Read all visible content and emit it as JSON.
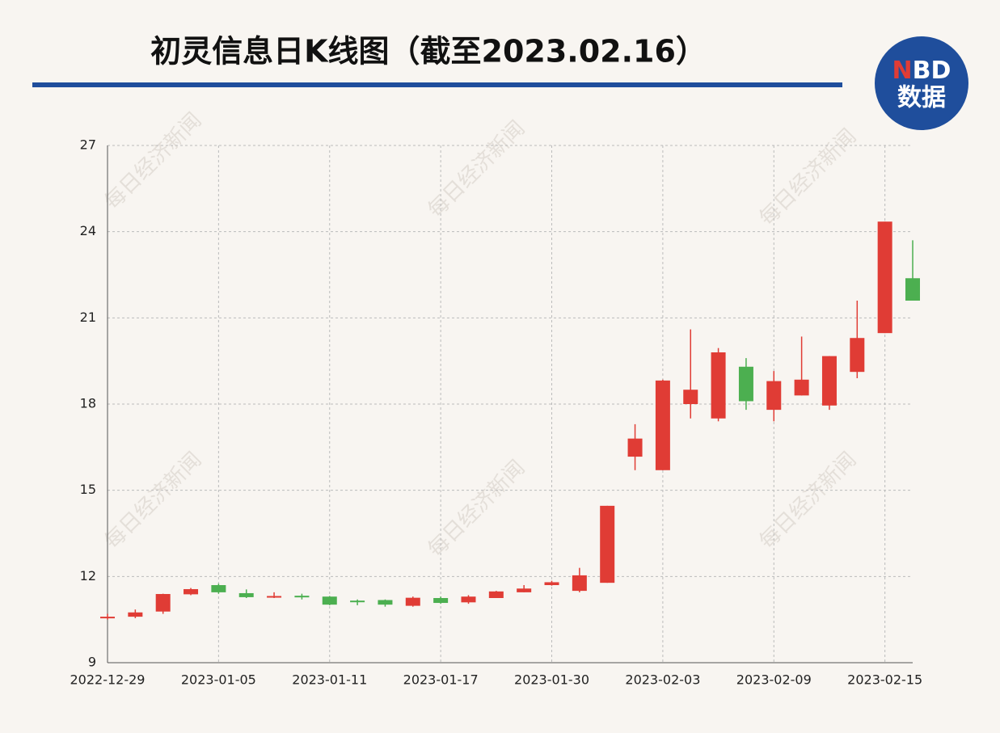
{
  "chart_data": {
    "type": "candlestick",
    "title": "初灵信息日K线图（截至2023.02.16）",
    "logo": {
      "n": "N",
      "bd": "BD",
      "sub": "数据"
    },
    "watermark": "每日经济新闻",
    "categories": [
      "2022-12-29",
      null,
      null,
      null,
      "2023-01-05",
      null,
      null,
      null,
      "2023-01-11",
      null,
      null,
      null,
      "2023-01-17",
      null,
      null,
      null,
      "2023-01-30",
      null,
      null,
      null,
      "2023-02-03",
      null,
      null,
      null,
      "2023-02-09",
      null,
      null,
      null,
      "2023-02-15",
      null
    ],
    "open": [
      10.55,
      10.6,
      10.78,
      11.38,
      11.7,
      11.42,
      11.28,
      11.33,
      11.3,
      11.16,
      11.18,
      10.98,
      11.25,
      11.1,
      11.25,
      11.45,
      11.7,
      11.5,
      11.78,
      16.17,
      15.7,
      18.0,
      17.5,
      19.3,
      17.8,
      18.3,
      17.95,
      19.12,
      20.47,
      22.38
    ],
    "high": [
      10.7,
      10.85,
      11.4,
      11.6,
      11.75,
      11.55,
      11.45,
      11.4,
      11.32,
      11.2,
      11.2,
      11.3,
      11.3,
      11.35,
      11.5,
      11.7,
      11.85,
      12.3,
      14.46,
      17.3,
      18.85,
      20.6,
      19.95,
      19.6,
      19.15,
      20.35,
      19.67,
      21.6,
      24.35,
      23.7
    ],
    "low": [
      10.5,
      10.55,
      10.7,
      11.35,
      11.4,
      11.25,
      11.25,
      11.2,
      11.0,
      11.0,
      10.95,
      10.95,
      11.05,
      11.05,
      11.25,
      11.45,
      11.68,
      11.45,
      11.78,
      15.7,
      15.7,
      17.5,
      17.4,
      17.8,
      17.4,
      18.3,
      17.8,
      18.9,
      20.47,
      21.6
    ],
    "close": [
      10.6,
      10.75,
      11.39,
      11.56,
      11.45,
      11.28,
      11.32,
      11.28,
      11.02,
      11.13,
      11.02,
      11.26,
      11.08,
      11.3,
      11.48,
      11.58,
      11.8,
      12.04,
      14.46,
      16.8,
      18.82,
      18.5,
      19.8,
      18.1,
      18.8,
      18.85,
      19.67,
      20.3,
      24.35,
      21.6
    ],
    "up_color": "#e03c35",
    "down_color": "#4caf50",
    "ylim": [
      9,
      27
    ],
    "yticks": [
      9,
      12,
      15,
      18,
      21,
      24,
      27
    ],
    "grid": true
  }
}
